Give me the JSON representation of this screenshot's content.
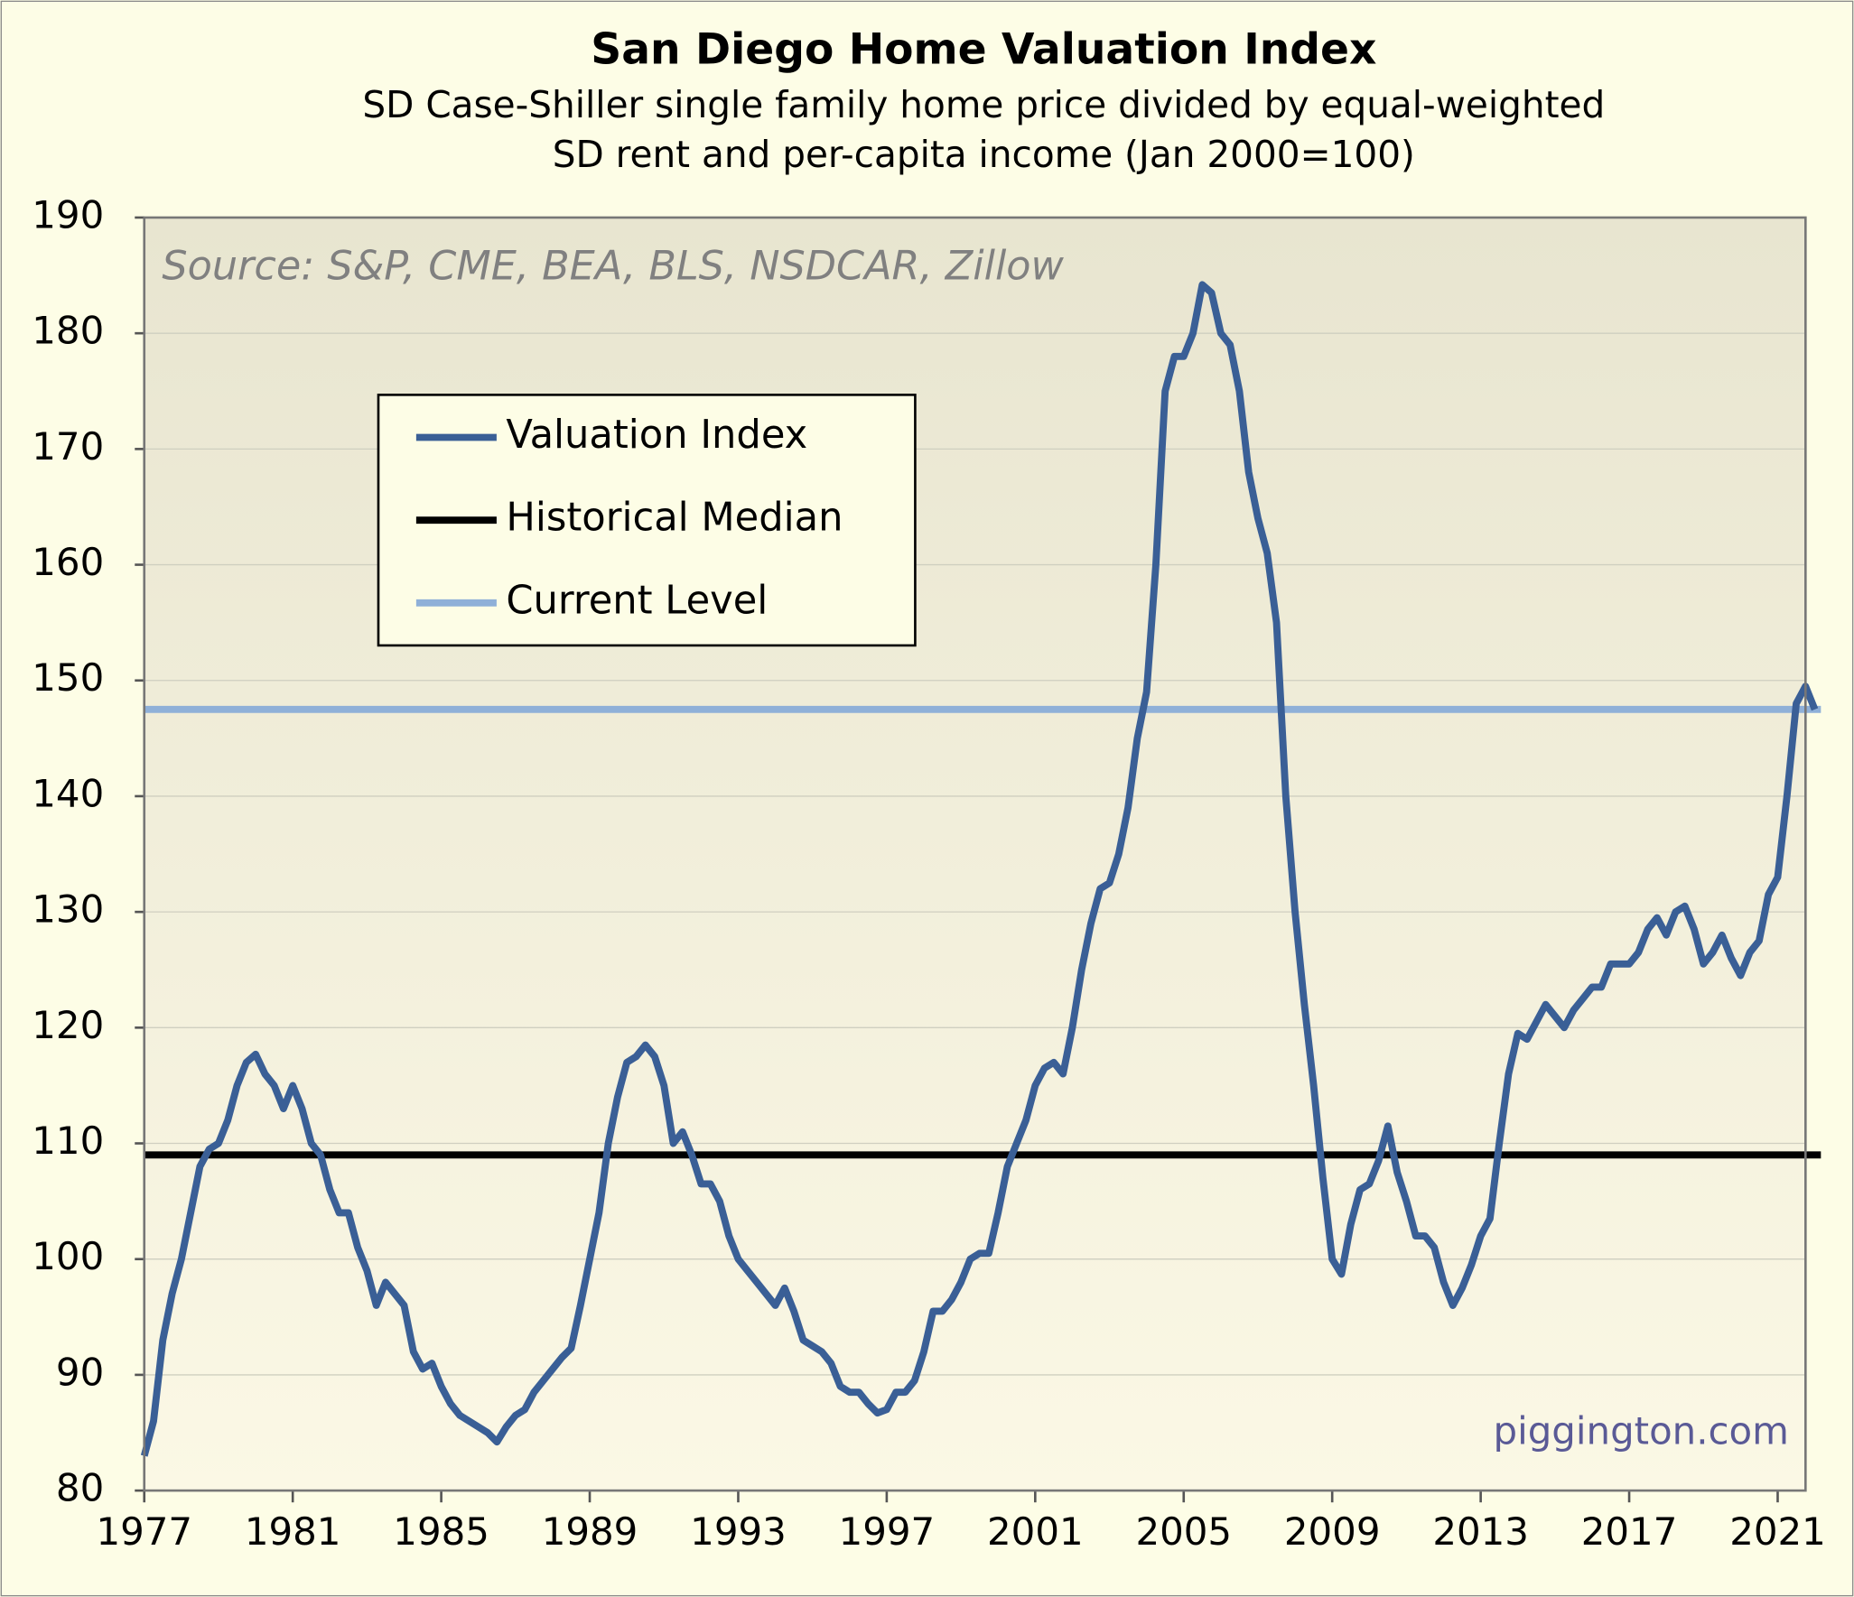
{
  "chart_data": {
    "type": "line",
    "title": "San Diego Home Valuation Index",
    "subtitle": [
      "SD Case-Shiller single family home price divided by equal-weighted",
      "SD rent and per-capita income (Jan 2000=100)"
    ],
    "source": "Source: S&P, CME, BEA, BLS, NSDCAR, Zillow",
    "watermark": "piggington.com",
    "x": [
      1977,
      1977.25,
      1977.5,
      1977.75,
      1978,
      1978.25,
      1978.5,
      1978.75,
      1979,
      1979.25,
      1979.5,
      1979.75,
      1980,
      1980.25,
      1980.5,
      1980.75,
      1981,
      1981.25,
      1981.5,
      1981.75,
      1982,
      1982.25,
      1982.5,
      1982.75,
      1983,
      1983.25,
      1983.5,
      1983.75,
      1984,
      1984.25,
      1984.5,
      1984.75,
      1985,
      1985.25,
      1985.5,
      1985.75,
      1986,
      1986.25,
      1986.5,
      1986.75,
      1987,
      1987.25,
      1987.5,
      1987.75,
      1988,
      1988.25,
      1988.5,
      1988.75,
      1989,
      1989.25,
      1989.5,
      1989.75,
      1990,
      1990.25,
      1990.5,
      1990.75,
      1991,
      1991.25,
      1991.5,
      1991.75,
      1992,
      1992.25,
      1992.5,
      1992.75,
      1993,
      1993.25,
      1993.5,
      1993.75,
      1994,
      1994.25,
      1994.5,
      1994.75,
      1995,
      1995.25,
      1995.5,
      1995.75,
      1996,
      1996.25,
      1996.5,
      1996.75,
      1997,
      1997.25,
      1997.5,
      1997.75,
      1998,
      1998.25,
      1998.5,
      1998.75,
      1999,
      1999.25,
      1999.5,
      1999.75,
      2000,
      2000.25,
      2000.5,
      2000.75,
      2001,
      2001.25,
      2001.5,
      2001.75,
      2002,
      2002.25,
      2002.5,
      2002.75,
      2003,
      2003.25,
      2003.5,
      2003.75,
      2004,
      2004.25,
      2004.5,
      2004.75,
      2005,
      2005.25,
      2005.5,
      2005.75,
      2006,
      2006.25,
      2006.5,
      2006.75,
      2007,
      2007.25,
      2007.5,
      2007.75,
      2008,
      2008.25,
      2008.5,
      2008.75,
      2009,
      2009.25,
      2009.5,
      2009.75,
      2010,
      2010.25,
      2010.5,
      2010.75,
      2011,
      2011.25,
      2011.5,
      2011.75,
      2012,
      2012.25,
      2012.5,
      2012.75,
      2013,
      2013.25,
      2013.5,
      2013.75,
      2014,
      2014.25,
      2014.5,
      2014.75,
      2015,
      2015.25,
      2015.5,
      2015.75,
      2016,
      2016.25,
      2016.5,
      2016.75,
      2017,
      2017.25,
      2017.5,
      2017.75,
      2018,
      2018.25,
      2018.5,
      2018.75,
      2019,
      2019.25,
      2019.5,
      2019.75,
      2020,
      2020.25,
      2020.5,
      2020.75,
      2021,
      2021.25,
      2021.5,
      2021.75,
      2022
    ],
    "series": [
      {
        "name": "Valuation Index",
        "color": "#3a5f96",
        "values": [
          83,
          86,
          93,
          97,
          100,
          104,
          108,
          109.5,
          110,
          112,
          115,
          117,
          117.7,
          116,
          115,
          113,
          115,
          113,
          110,
          109,
          106,
          104,
          104,
          101,
          99,
          96,
          98,
          97,
          96,
          92,
          90.5,
          91,
          89,
          87.5,
          86.5,
          86,
          85.5,
          85,
          84.2,
          85.5,
          86.5,
          87,
          88.5,
          89.5,
          90.5,
          91.5,
          92.3,
          96,
          100,
          104,
          110,
          114,
          117,
          117.5,
          118.5,
          117.5,
          115,
          110,
          111,
          109,
          106.5,
          106.5,
          105,
          102,
          100,
          99,
          98,
          97,
          96,
          97.5,
          95.5,
          93,
          92.5,
          92,
          91,
          89,
          88.5,
          88.5,
          87.5,
          86.7,
          87,
          88.5,
          88.5,
          89.5,
          92,
          95.5,
          95.5,
          96.5,
          98,
          100,
          100.5,
          100.5,
          104,
          108,
          110,
          112,
          115,
          116.5,
          117,
          116,
          120,
          125,
          129,
          132,
          132.5,
          135,
          139,
          145,
          149,
          160,
          175,
          178,
          178,
          180,
          184.2,
          183.5,
          180,
          179,
          175,
          168,
          164,
          161,
          155,
          140,
          130,
          122,
          115,
          107,
          100,
          98.7,
          103,
          106,
          106.5,
          108.5,
          111.5,
          107.5,
          105,
          102,
          102,
          101,
          98,
          96,
          97.5,
          99.5,
          102,
          103.5,
          110,
          116,
          119.5,
          119,
          120.5,
          122,
          121,
          120,
          121.5,
          122.5,
          123.5,
          123.5,
          125.5,
          125.5,
          125.5,
          126.5,
          128.5,
          129.5,
          128,
          130,
          130.5,
          128.5,
          125.5,
          126.5,
          128,
          126,
          124.5,
          126.5,
          127.5,
          131.5,
          133,
          140,
          148,
          149.5,
          147.5
        ]
      }
    ],
    "reference_lines": [
      {
        "name": "Historical Median",
        "color": "#000000",
        "value": 109
      },
      {
        "name": "Current Level",
        "color": "#8fb0d8",
        "value": 147.5
      }
    ],
    "xlim": [
      1977,
      2021.75
    ],
    "xticks": [
      1977,
      1981,
      1985,
      1989,
      1993,
      1997,
      2001,
      2005,
      2009,
      2013,
      2017,
      2021
    ],
    "ylim": [
      80,
      190
    ],
    "yticks": [
      80,
      90,
      100,
      110,
      120,
      130,
      140,
      150,
      160,
      170,
      180,
      190
    ],
    "grid": true
  }
}
